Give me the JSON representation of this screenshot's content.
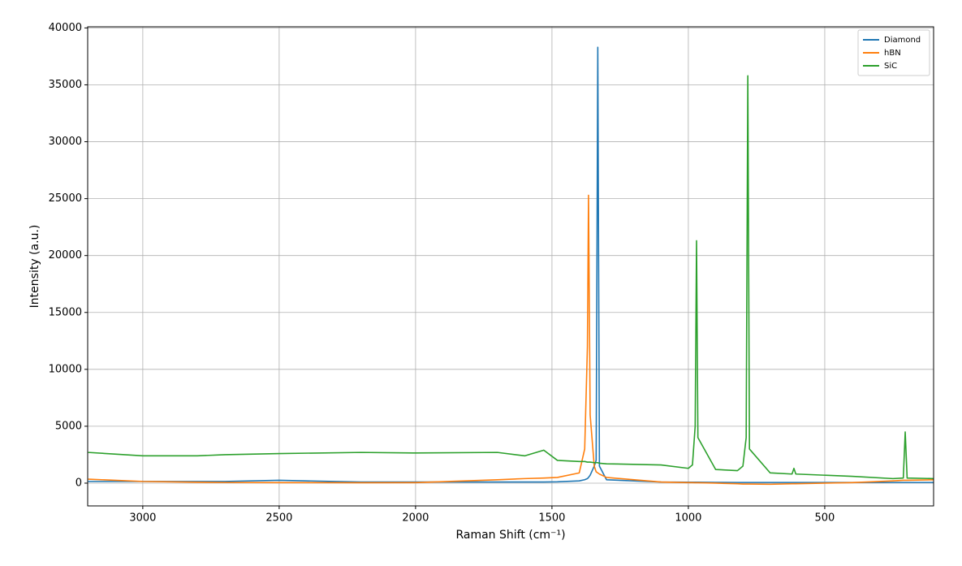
{
  "chart_data": {
    "type": "line",
    "xlabel": "Raman Shift (cm⁻¹)",
    "ylabel": "Intensity (a.u.)",
    "x": [
      3200,
      3000,
      2800,
      2700,
      2500,
      2200,
      2000,
      1700,
      1600,
      1530,
      1480,
      1400,
      1380,
      1370,
      1366,
      1360,
      1345,
      1338,
      1332,
      1326,
      1300,
      1100,
      1000,
      985,
      975,
      970,
      965,
      900,
      820,
      800,
      788,
      782,
      776,
      700,
      620,
      613,
      606,
      400,
      250,
      212,
      205,
      198,
      101
    ],
    "series": [
      {
        "name": "Diamond",
        "color": "#1f77b4",
        "values": [
          150,
          150,
          150,
          150,
          250,
          100,
          100,
          100,
          100,
          100,
          120,
          200,
          300,
          400,
          500,
          700,
          1500,
          2000,
          38300,
          1500,
          300,
          100,
          80,
          80,
          80,
          80,
          80,
          70,
          60,
          60,
          60,
          60,
          60,
          60,
          60,
          60,
          60,
          60,
          60,
          60,
          60,
          60,
          60
        ]
      },
      {
        "name": "hBN",
        "color": "#ff7f0e",
        "values": [
          350,
          150,
          80,
          60,
          50,
          40,
          50,
          300,
          400,
          450,
          500,
          900,
          3000,
          12000,
          25300,
          6000,
          1500,
          1000,
          900,
          800,
          500,
          100,
          50,
          50,
          40,
          40,
          40,
          0,
          -50,
          -80,
          -80,
          -80,
          -80,
          -100,
          -50,
          -50,
          -50,
          50,
          200,
          250,
          250,
          250,
          300
        ]
      },
      {
        "name": "SiC",
        "color": "#2ca02c",
        "values": [
          2700,
          2400,
          2400,
          2500,
          2600,
          2700,
          2650,
          2700,
          2400,
          2900,
          2000,
          1900,
          1900,
          1850,
          1850,
          1850,
          1800,
          1800,
          1800,
          1750,
          1700,
          1600,
          1300,
          1600,
          5000,
          21300,
          4000,
          1200,
          1100,
          1500,
          4000,
          35800,
          3000,
          900,
          800,
          1300,
          800,
          600,
          400,
          450,
          4500,
          450,
          400
        ]
      }
    ],
    "xlim": [
      3202,
      101
    ],
    "ylim": [
      -2000,
      40100
    ],
    "xticks": [
      3000,
      2500,
      2000,
      1500,
      1000,
      500
    ],
    "yticks": [
      0,
      5000,
      10000,
      15000,
      20000,
      25000,
      30000,
      35000,
      40000
    ],
    "grid": true,
    "legend": "upper right"
  }
}
